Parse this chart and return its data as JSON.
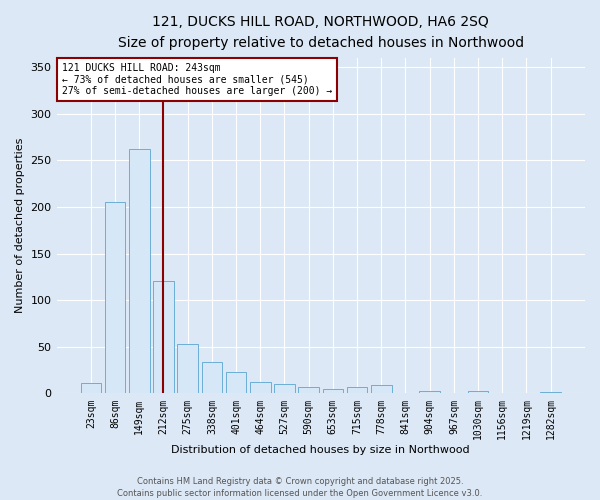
{
  "title_line1": "121, DUCKS HILL ROAD, NORTHWOOD, HA6 2SQ",
  "title_line2": "Size of property relative to detached houses in Northwood",
  "xlabel": "Distribution of detached houses by size in Northwood",
  "ylabel": "Number of detached properties",
  "categories": [
    "23sqm",
    "86sqm",
    "149sqm",
    "212sqm",
    "275sqm",
    "338sqm",
    "401sqm",
    "464sqm",
    "527sqm",
    "590sqm",
    "653sqm",
    "715sqm",
    "778sqm",
    "841sqm",
    "904sqm",
    "967sqm",
    "1030sqm",
    "1156sqm",
    "1219sqm",
    "1282sqm"
  ],
  "values": [
    11,
    205,
    262,
    121,
    53,
    34,
    23,
    12,
    10,
    7,
    5,
    7,
    9,
    0,
    3,
    0,
    3,
    0,
    0,
    2
  ],
  "bar_color": "#d6e8f7",
  "bar_edge_color": "#6baed6",
  "vline_color": "#8b0000",
  "vline_x": 3.0,
  "annotation_text": "121 DUCKS HILL ROAD: 243sqm\n← 73% of detached houses are smaller (545)\n27% of semi-detached houses are larger (200) →",
  "annotation_box_color": "white",
  "annotation_box_edge_color": "#8b0000",
  "footer_line1": "Contains HM Land Registry data © Crown copyright and database right 2025.",
  "footer_line2": "Contains public sector information licensed under the Open Government Licence v3.0.",
  "background_color": "#dce8f5",
  "plot_bg_color": "#dce8f5",
  "ylim": [
    0,
    360
  ],
  "yticks": [
    0,
    50,
    100,
    150,
    200,
    250,
    300,
    350
  ],
  "grid_color": "#ffffff",
  "title_fontsize": 10,
  "subtitle_fontsize": 9,
  "ylabel_fontsize": 8,
  "xlabel_fontsize": 8,
  "tick_fontsize": 7,
  "ann_fontsize": 7,
  "footer_fontsize": 6
}
